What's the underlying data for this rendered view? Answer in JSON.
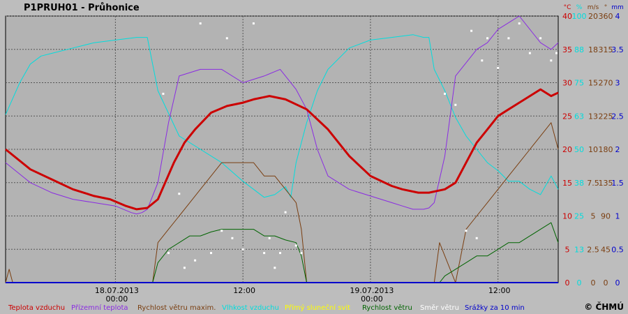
{
  "header": {
    "title": "P1PRUH01 - Průhonice"
  },
  "copyright": "© ČHMÚ",
  "chart_data": {
    "type": "line",
    "grid": true,
    "x_range": [
      "2013-07-17T13:40",
      "2013-07-19T17:40"
    ],
    "date_labels": [
      {
        "t": "2013-07-18T00:00",
        "label": "18.07.2013",
        "sub": "00:00"
      },
      {
        "t": "2013-07-18T12:00",
        "label": "",
        "sub": "12:00"
      },
      {
        "t": "2013-07-19T00:00",
        "label": "19.07.2013",
        "sub": "00:00"
      },
      {
        "t": "2013-07-19T12:00",
        "label": "",
        "sub": "12:00"
      }
    ],
    "axes": [
      {
        "unit": "°C",
        "color": "#cc0000",
        "ticks": [
          0,
          5,
          10,
          15,
          20,
          25,
          30,
          35,
          40
        ]
      },
      {
        "unit": "%",
        "color": "#00dddd",
        "ticks": [
          0,
          13,
          25,
          38,
          50,
          63,
          75,
          88,
          100
        ]
      },
      {
        "unit": "m/s",
        "color": "#7a3e10",
        "ticks": [
          0,
          2.5,
          5,
          7.5,
          10,
          13,
          15,
          18,
          20
        ]
      },
      {
        "unit": "°",
        "color": "#7a3e10",
        "ticks": [
          0,
          45,
          90,
          135,
          180,
          225,
          270,
          315,
          360
        ]
      },
      {
        "unit": "mm",
        "color": "#0000cc",
        "ticks": [
          0,
          0.5,
          1,
          1.5,
          2,
          2.5,
          3,
          3.5,
          4
        ]
      }
    ],
    "legend": [
      {
        "label": "Teplota vzduchu",
        "color": "#cc0000"
      },
      {
        "label": "Přízemní teplota",
        "color": "#8a2be2"
      },
      {
        "label": "Rychlost větru maxim.",
        "color": "#7a3e10"
      },
      {
        "label": "Vlhkost vzduchu",
        "color": "#00dddd"
      },
      {
        "label": "Přímý sluneční svit",
        "color": "#ffff00"
      },
      {
        "label": "Rychlost větru",
        "color": "#006400"
      },
      {
        "label": "Směr větru",
        "color": "#ffffff"
      },
      {
        "label": "Srážky za 10 min",
        "color": "#0000cc"
      }
    ],
    "series": [
      {
        "name": "Teplota vzduchu",
        "unit": "°C",
        "color": "#cc0000",
        "x": [
          "2013-07-17T13:40",
          "2013-07-17T16:00",
          "2013-07-17T18:00",
          "2013-07-17T20:00",
          "2013-07-17T22:00",
          "2013-07-17T23:30",
          "2013-07-18T01:00",
          "2013-07-18T02:00",
          "2013-07-18T03:00",
          "2013-07-18T04:00",
          "2013-07-18T05:30",
          "2013-07-18T06:30",
          "2013-07-18T07:30",
          "2013-07-18T09:00",
          "2013-07-18T10:30",
          "2013-07-18T12:00",
          "2013-07-18T13:00",
          "2013-07-18T14:30",
          "2013-07-18T16:00",
          "2013-07-18T18:00",
          "2013-07-18T20:00",
          "2013-07-18T22:00",
          "2013-07-19T00:00",
          "2013-07-19T02:00",
          "2013-07-19T03:00",
          "2013-07-19T04:30",
          "2013-07-19T05:00",
          "2013-07-19T05:30",
          "2013-07-19T07:00",
          "2013-07-19T08:00",
          "2013-07-19T09:00",
          "2013-07-19T10:00",
          "2013-07-19T11:00",
          "2013-07-19T12:00",
          "2013-07-19T13:00",
          "2013-07-19T14:00",
          "2013-07-19T15:00",
          "2013-07-19T16:00",
          "2013-07-19T17:00",
          "2013-07-19T17:40"
        ],
        "y": [
          20,
          17,
          15.5,
          14,
          13,
          12.5,
          11.5,
          11,
          11.2,
          12.5,
          18,
          21,
          23,
          25.5,
          26.5,
          27,
          27.5,
          28,
          27.5,
          26,
          23,
          19,
          16,
          14.5,
          14,
          13.5,
          13.5,
          13.5,
          14,
          15,
          18,
          21,
          23,
          25,
          26,
          27,
          28,
          29,
          28,
          28.5
        ]
      },
      {
        "name": "Přízemní teplota",
        "unit": "°C",
        "color": "#8a2be2",
        "x": [
          "2013-07-17T13:40",
          "2013-07-17T16:00",
          "2013-07-17T18:00",
          "2013-07-17T20:00",
          "2013-07-17T22:00",
          "2013-07-18T00:00",
          "2013-07-18T01:30",
          "2013-07-18T02:00",
          "2013-07-18T02:30",
          "2013-07-18T03:00",
          "2013-07-18T04:00",
          "2013-07-18T05:00",
          "2013-07-18T06:00",
          "2013-07-18T08:00",
          "2013-07-18T10:00",
          "2013-07-18T12:00",
          "2013-07-18T14:00",
          "2013-07-18T15:30",
          "2013-07-18T16:00",
          "2013-07-18T17:00",
          "2013-07-18T18:00",
          "2013-07-18T19:00",
          "2013-07-18T20:00",
          "2013-07-18T22:00",
          "2013-07-19T00:00",
          "2013-07-19T02:00",
          "2013-07-19T03:00",
          "2013-07-19T04:00",
          "2013-07-19T05:00",
          "2013-07-19T05:30",
          "2013-07-19T06:00",
          "2013-07-19T07:00",
          "2013-07-19T08:00",
          "2013-07-19T09:00",
          "2013-07-19T10:00",
          "2013-07-19T11:00",
          "2013-07-19T12:00",
          "2013-07-19T13:00",
          "2013-07-19T14:00",
          "2013-07-19T15:00",
          "2013-07-19T16:00",
          "2013-07-19T17:00",
          "2013-07-19T17:40"
        ],
        "y": [
          18,
          15,
          13.5,
          12.5,
          12,
          11.5,
          10.5,
          10.3,
          10.5,
          11,
          15,
          24,
          31,
          32,
          32,
          30,
          31,
          32,
          31,
          29,
          26,
          20,
          16,
          14,
          13,
          12,
          11.5,
          11,
          11,
          11.2,
          12,
          19,
          31,
          33,
          35,
          36,
          38,
          39,
          40,
          38,
          36,
          35,
          36
        ]
      },
      {
        "name": "Vlhkost vzduchu",
        "unit": "%",
        "color": "#00dddd",
        "x": [
          "2013-07-17T13:40",
          "2013-07-17T15:00",
          "2013-07-17T16:00",
          "2013-07-17T17:00",
          "2013-07-17T18:00",
          "2013-07-17T20:00",
          "2013-07-17T22:00",
          "2013-07-18T00:00",
          "2013-07-18T02:00",
          "2013-07-18T03:00",
          "2013-07-18T04:00",
          "2013-07-18T06:00",
          "2013-07-18T08:00",
          "2013-07-18T10:00",
          "2013-07-18T12:00",
          "2013-07-18T13:00",
          "2013-07-18T14:00",
          "2013-07-18T15:00",
          "2013-07-18T16:00",
          "2013-07-18T16:30",
          "2013-07-18T17:00",
          "2013-07-18T18:00",
          "2013-07-18T19:00",
          "2013-07-18T20:00",
          "2013-07-18T22:00",
          "2013-07-19T00:00",
          "2013-07-19T02:00",
          "2013-07-19T04:00",
          "2013-07-19T05:00",
          "2013-07-19T05:30",
          "2013-07-19T06:00",
          "2013-07-19T07:00",
          "2013-07-19T08:00",
          "2013-07-19T09:00",
          "2013-07-19T10:00",
          "2013-07-19T11:00",
          "2013-07-19T12:00",
          "2013-07-19T13:00",
          "2013-07-19T14:00",
          "2013-07-19T15:00",
          "2013-07-19T16:00",
          "2013-07-19T17:00",
          "2013-07-19T17:40"
        ],
        "y": [
          63,
          75,
          82,
          85,
          86,
          88,
          90,
          91,
          92,
          92,
          72,
          55,
          50,
          45,
          38,
          35,
          32,
          33,
          36,
          32,
          45,
          60,
          72,
          80,
          88,
          91,
          92,
          93,
          92,
          92,
          80,
          72,
          62,
          55,
          50,
          45,
          42,
          38,
          38,
          35,
          33,
          40,
          35
        ]
      },
      {
        "name": "Rychlost větru maxim.",
        "unit": "m/s",
        "color": "#7a3e10",
        "x": [
          "2013-07-17T13:40",
          "2013-07-17T14:00",
          "2013-07-17T14:20",
          "2013-07-17T14:40",
          "2013-07-18T03:30",
          "2013-07-18T04:00",
          "2013-07-18T05:00",
          "2013-07-18T06:00",
          "2013-07-18T07:00",
          "2013-07-18T08:00",
          "2013-07-18T09:00",
          "2013-07-18T10:00",
          "2013-07-18T11:00",
          "2013-07-18T12:00",
          "2013-07-18T13:00",
          "2013-07-18T14:00",
          "2013-07-18T15:00",
          "2013-07-18T16:00",
          "2013-07-18T17:00",
          "2013-07-18T17:30",
          "2013-07-18T18:00",
          "2013-07-19T06:00",
          "2013-07-19T06:30",
          "2013-07-19T07:00",
          "2013-07-19T08:00",
          "2013-07-19T09:00",
          "2013-07-19T10:00",
          "2013-07-19T11:00",
          "2013-07-19T12:00",
          "2013-07-19T13:00",
          "2013-07-19T14:00",
          "2013-07-19T15:00",
          "2013-07-19T16:00",
          "2013-07-19T17:00",
          "2013-07-19T17:40"
        ],
        "y": [
          0,
          1,
          0,
          0,
          0,
          3,
          4,
          5,
          6,
          7,
          8,
          9,
          9,
          9,
          9,
          8,
          8,
          7,
          6,
          4,
          0,
          0,
          3,
          2,
          0,
          4,
          5,
          6,
          7,
          8,
          9,
          10,
          11,
          12,
          10
        ]
      },
      {
        "name": "Rychlost větru",
        "unit": "m/s",
        "color": "#006400",
        "x": [
          "2013-07-18T03:30",
          "2013-07-18T04:00",
          "2013-07-18T05:00",
          "2013-07-18T06:00",
          "2013-07-18T07:00",
          "2013-07-18T08:00",
          "2013-07-18T09:00",
          "2013-07-18T10:00",
          "2013-07-18T11:00",
          "2013-07-18T12:00",
          "2013-07-18T13:00",
          "2013-07-18T14:00",
          "2013-07-18T15:00",
          "2013-07-18T16:00",
          "2013-07-18T17:00",
          "2013-07-18T17:30",
          "2013-07-18T18:00",
          "2013-07-19T06:30",
          "2013-07-19T07:00",
          "2013-07-19T08:00",
          "2013-07-19T09:00",
          "2013-07-19T10:00",
          "2013-07-19T11:00",
          "2013-07-19T12:00",
          "2013-07-19T13:00",
          "2013-07-19T14:00",
          "2013-07-19T15:00",
          "2013-07-19T16:00",
          "2013-07-19T17:00",
          "2013-07-19T17:40"
        ],
        "y": [
          0,
          1.5,
          2.5,
          3,
          3.5,
          3.5,
          3.8,
          4,
          4,
          4,
          4,
          3.5,
          3.5,
          3.2,
          3,
          2,
          0,
          0,
          0.5,
          1,
          1.5,
          2,
          2,
          2.5,
          3,
          3,
          3.5,
          4,
          4.5,
          3
        ]
      },
      {
        "name": "Srážky za 10 min",
        "unit": "mm",
        "color": "#0000cc",
        "x": [
          "2013-07-17T13:40",
          "2013-07-19T17:40"
        ],
        "y": [
          0,
          0
        ]
      },
      {
        "name": "Směr větru",
        "unit": "°",
        "color": "#ffffff",
        "x": [
          "2013-07-18T04:30",
          "2013-07-18T05:00",
          "2013-07-18T06:00",
          "2013-07-18T06:30",
          "2013-07-18T07:30",
          "2013-07-18T08:00",
          "2013-07-18T09:00",
          "2013-07-18T10:00",
          "2013-07-18T10:30",
          "2013-07-18T11:00",
          "2013-07-18T12:00",
          "2013-07-18T13:00",
          "2013-07-18T14:00",
          "2013-07-18T14:30",
          "2013-07-18T15:00",
          "2013-07-18T15:30",
          "2013-07-18T16:00",
          "2013-07-18T17:00",
          "2013-07-18T17:30",
          "2013-07-19T07:00",
          "2013-07-19T08:00",
          "2013-07-19T09:00",
          "2013-07-19T09:30",
          "2013-07-19T10:00",
          "2013-07-19T10:30",
          "2013-07-19T11:00",
          "2013-07-19T12:00",
          "2013-07-19T13:00",
          "2013-07-19T14:00",
          "2013-07-19T15:00",
          "2013-07-19T16:00",
          "2013-07-19T17:00",
          "2013-07-19T17:30"
        ],
        "y": [
          255,
          40,
          120,
          20,
          30,
          350,
          40,
          70,
          330,
          60,
          45,
          350,
          40,
          60,
          20,
          40,
          95,
          50,
          40,
          255,
          240,
          70,
          340,
          60,
          300,
          330,
          290,
          330,
          350,
          310,
          330,
          300,
          310
        ]
      }
    ]
  }
}
